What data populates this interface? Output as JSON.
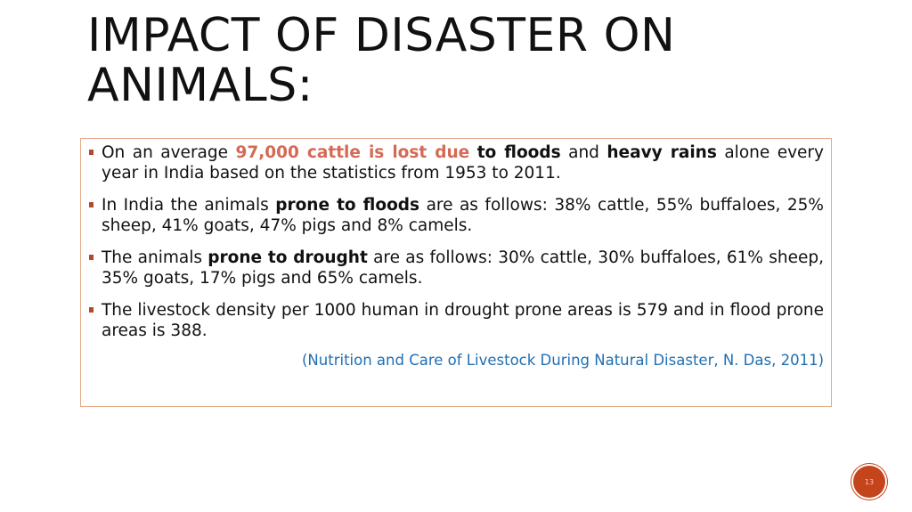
{
  "title": {
    "line1": "IMPACT OF DISASTER ON",
    "line2": "ANIMALS:"
  },
  "bullets": [
    {
      "t1": "On an average ",
      "accent": "97,000 cattle is lost due",
      "t2": " ",
      "b1": "to floods",
      "t3": " and ",
      "b2": "heavy rains",
      "t4": " alone every year in India based on the statistics from 1953 to 2011."
    },
    {
      "t1": "In India the animals ",
      "b1": "prone to floods",
      "t2": " are as follows: 38% cattle, 55% buffaloes, 25% sheep, 41% goats, 47% pigs and 8% camels."
    },
    {
      "t1": "The animals ",
      "b1": "prone to drought",
      "t2": " are as follows: 30% cattle, 30% buffaloes, 61% sheep, 35% goats, 17% pigs and 65% camels."
    },
    {
      "t1": "The livestock density per 1000 human in drought prone areas is 579 and in flood prone areas is 388."
    }
  ],
  "citation": "(Nutrition and Care of Livestock During Natural Disaster, N. Das, 2011)",
  "page_number": "13",
  "colors": {
    "accent": "#d46a55",
    "bullet": "#b04a2e",
    "citation": "#1f6fb3",
    "border": "#e3a98a",
    "badge": "#c4451c"
  }
}
